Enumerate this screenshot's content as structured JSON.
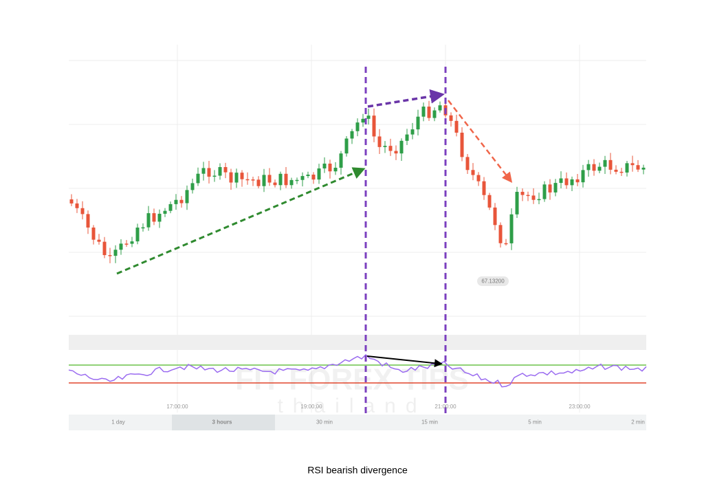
{
  "time_axis": {
    "labels": [
      "17:00:00",
      "19:00:00",
      "21:00:00",
      "23:00:00"
    ]
  },
  "price_label": "67.13200",
  "timeframes": {
    "items": [
      "1 day",
      "3 hours",
      "30 min",
      "15 min",
      "5 min",
      "2 min"
    ],
    "active": 1
  },
  "watermark": {
    "brand": "FIT FOREX TIPS",
    "sub": "thailand"
  },
  "caption": "RSI bearish divergence"
}
